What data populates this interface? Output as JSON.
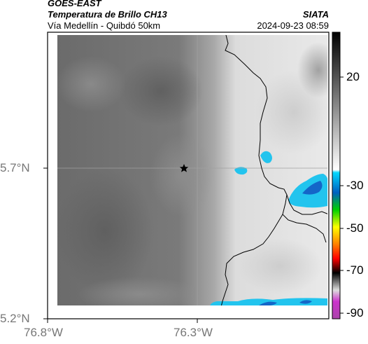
{
  "header": {
    "satellite": "GOES-EAST",
    "product": "Temperatura de Brillo CH13",
    "route": "Vía Medellín - Quibdó 50km",
    "agency": "SIATA",
    "timestamp": "2024-09-23 08:59"
  },
  "map": {
    "x_ticks": [
      "76.8°W",
      "76.3°W"
    ],
    "y_ticks": [
      "5.7°N",
      "5.2°N"
    ],
    "marker": "star",
    "colors": {
      "cloud_dark": "#6f6f6f",
      "cloud_mid": "#9a9a9a",
      "clear": "#e6e6e6",
      "cold_top": "#22c4ee",
      "cold_core": "#1466c8",
      "border_line": "#000000",
      "grid_line": "#aaaaaa"
    }
  },
  "colorbar": {
    "ticks": [
      "20",
      "-30",
      "-50",
      "-70",
      "-90"
    ],
    "colors": [
      "#000000",
      "#ffffff",
      "#00d8ff",
      "#0060c0",
      "#00d000",
      "#ffff00",
      "#ff8000",
      "#ff0000",
      "#000000",
      "#cc33cc"
    ]
  }
}
